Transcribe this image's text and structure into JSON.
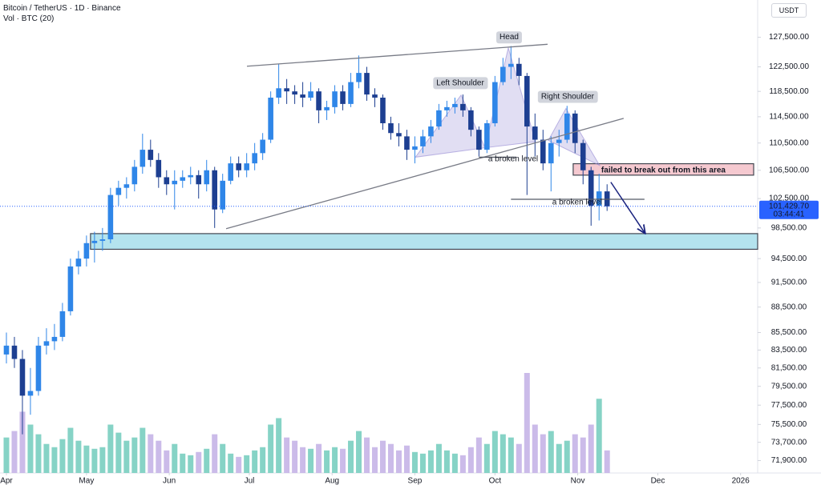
{
  "header": {
    "title": "Bitcoin / TetherUS · 1D · Binance",
    "indicator": "Vol · BTC (20)",
    "currency": "USDT"
  },
  "chart_data": {
    "type": "candlestick",
    "log_scale": true,
    "grid": false,
    "xlim": [
      -2.4,
      281.4
    ],
    "ylim": [
      70700,
      134100
    ],
    "xticks": [
      {
        "value": 0,
        "label": "Apr"
      },
      {
        "value": 30,
        "label": "May"
      },
      {
        "value": 61,
        "label": "Jun"
      },
      {
        "value": 91,
        "label": "Jul"
      },
      {
        "value": 122,
        "label": "Aug"
      },
      {
        "value": 153,
        "label": "Sep"
      },
      {
        "value": 183,
        "label": "Oct"
      },
      {
        "value": 214,
        "label": "Nov"
      },
      {
        "value": 244,
        "label": "Dec"
      },
      {
        "value": 275,
        "label": "2026"
      }
    ],
    "yticks": [
      {
        "value": 127500,
        "label": "127,500.00"
      },
      {
        "value": 122500,
        "label": "122,500.00"
      },
      {
        "value": 118500,
        "label": "118,500.00"
      },
      {
        "value": 114500,
        "label": "114,500.00"
      },
      {
        "value": 110500,
        "label": "110,500.00"
      },
      {
        "value": 106500,
        "label": "106,500.00"
      },
      {
        "value": 102500,
        "label": "102,500.00"
      },
      {
        "value": 98500,
        "label": "98,500.00"
      },
      {
        "value": 94500,
        "label": "94,500.00"
      },
      {
        "value": 91500,
        "label": "91,500.00"
      },
      {
        "value": 88500,
        "label": "88,500.00"
      },
      {
        "value": 85500,
        "label": "85,500.00"
      },
      {
        "value": 83500,
        "label": "83,500.00"
      },
      {
        "value": 81500,
        "label": "81,500.00"
      },
      {
        "value": 79500,
        "label": "79,500.00"
      },
      {
        "value": 77500,
        "label": "77,500.00"
      },
      {
        "value": 75500,
        "label": "75,500.00"
      },
      {
        "value": 73700,
        "label": "73,700.00"
      },
      {
        "value": 71900,
        "label": "71,900.00"
      }
    ],
    "x": [
      0,
      3,
      6,
      9,
      12,
      15,
      18,
      21,
      24,
      27,
      30,
      33,
      36,
      39,
      42,
      45,
      48,
      51,
      54,
      57,
      60,
      63,
      66,
      69,
      72,
      75,
      78,
      81,
      84,
      87,
      90,
      93,
      96,
      99,
      102,
      105,
      108,
      111,
      114,
      117,
      120,
      123,
      126,
      129,
      132,
      135,
      138,
      141,
      144,
      147,
      150,
      153,
      156,
      159,
      162,
      165,
      168,
      171,
      174,
      177,
      180,
      183,
      186,
      189,
      192,
      195,
      198,
      201,
      204,
      207,
      210,
      213,
      216,
      219,
      222,
      225
    ],
    "open": [
      83000,
      84000,
      82500,
      78500,
      79000,
      84000,
      84500,
      85000,
      88000,
      93500,
      94500,
      96500,
      96800,
      97000,
      103000,
      104000,
      104500,
      107000,
      109500,
      108000,
      105500,
      104500,
      105000,
      105500,
      105800,
      104500,
      106500,
      101000,
      105000,
      107500,
      106500,
      107500,
      109000,
      111000,
      117500,
      119000,
      118500,
      118000,
      117500,
      118500,
      115500,
      116000,
      118500,
      116500,
      120000,
      121500,
      118000,
      117500,
      113500,
      112000,
      111500,
      109500,
      110000,
      111500,
      113000,
      115500,
      116000,
      116500,
      115500,
      112500,
      109500,
      113500,
      120000,
      122500,
      123000,
      121000,
      113000,
      111000,
      107500,
      110500,
      111000,
      115000,
      110500,
      106500,
      101500,
      103500
    ],
    "high": [
      85500,
      85000,
      83500,
      81500,
      85000,
      86000,
      86500,
      89000,
      94500,
      95500,
      97500,
      98000,
      98500,
      104000,
      105000,
      105500,
      108000,
      111900,
      111000,
      109000,
      106500,
      106500,
      106500,
      107000,
      106500,
      108000,
      107000,
      106000,
      108500,
      108500,
      109000,
      110500,
      112000,
      118500,
      123000,
      120500,
      119500,
      120000,
      120000,
      119000,
      117000,
      119500,
      119500,
      121500,
      124400,
      122500,
      119000,
      118000,
      114500,
      113500,
      112500,
      111500,
      112500,
      114000,
      116500,
      117000,
      117500,
      118000,
      116000,
      113000,
      114000,
      121000,
      124000,
      126000,
      124000,
      121500,
      115000,
      112500,
      111500,
      112500,
      116200,
      115500,
      111000,
      107000,
      106000,
      104500
    ],
    "low": [
      82000,
      81500,
      74500,
      76500,
      78500,
      83000,
      83500,
      84500,
      87500,
      92500,
      93500,
      94000,
      95500,
      96500,
      101500,
      102500,
      103500,
      106000,
      107000,
      104000,
      103000,
      101000,
      104000,
      104500,
      102500,
      103500,
      98500,
      100500,
      104500,
      105500,
      105500,
      106500,
      108000,
      110500,
      116500,
      116500,
      116500,
      116000,
      117000,
      113500,
      114000,
      115000,
      115500,
      116000,
      119000,
      117000,
      116000,
      112500,
      111000,
      110000,
      108000,
      107500,
      109000,
      110500,
      112500,
      114500,
      115000,
      114500,
      111500,
      108500,
      109000,
      113000,
      119500,
      120500,
      119500,
      103000,
      108500,
      106500,
      103500,
      108500,
      110500,
      109000,
      104500,
      98800,
      99500,
      100800
    ],
    "close": [
      84000,
      82500,
      78500,
      79000,
      84000,
      84500,
      85000,
      88000,
      93500,
      94500,
      96500,
      96800,
      97000,
      103000,
      104000,
      104500,
      107000,
      109500,
      108000,
      105500,
      104500,
      105000,
      105500,
      105800,
      104500,
      106500,
      101000,
      105000,
      107500,
      106500,
      107500,
      109000,
      111000,
      117500,
      119000,
      118500,
      118000,
      117500,
      118500,
      115500,
      116000,
      118500,
      116500,
      120000,
      121500,
      118000,
      117500,
      113500,
      112000,
      111500,
      109500,
      110000,
      111500,
      113000,
      115500,
      116000,
      116500,
      115500,
      112500,
      109500,
      113500,
      120000,
      122500,
      123000,
      121000,
      113000,
      111000,
      107500,
      110500,
      111000,
      115000,
      110500,
      106500,
      101500,
      103500,
      101430
    ],
    "volume": [
      22000,
      26000,
      38000,
      30000,
      24000,
      18000,
      16000,
      21000,
      28000,
      20000,
      17000,
      15000,
      16000,
      30000,
      25000,
      20000,
      22000,
      28000,
      24000,
      20000,
      14000,
      18000,
      12000,
      11000,
      13000,
      15000,
      24000,
      18000,
      12000,
      10000,
      11000,
      14000,
      16000,
      30000,
      34000,
      22000,
      20000,
      16000,
      15000,
      18000,
      14000,
      16000,
      15000,
      20000,
      26000,
      22000,
      16000,
      20000,
      18000,
      14000,
      17000,
      13000,
      12000,
      14000,
      18000,
      14000,
      12000,
      11000,
      16000,
      22000,
      18000,
      26000,
      24000,
      22000,
      18000,
      62000,
      30000,
      24000,
      26000,
      18000,
      20000,
      24000,
      22000,
      30000,
      46000,
      14000
    ],
    "up_color": "#2f86e8",
    "down_color": "#1d3f91",
    "volume_up_color": "#86d3c6",
    "volume_down_color": "#cbbbe9",
    "last_price": {
      "value": 101429.7,
      "label": "101,429.70"
    },
    "countdown": "03:44:41",
    "patterns": [
      {
        "points": [
          [
            153.2,
            108400
          ],
          [
            170.3,
            117900
          ],
          [
            179.3,
            109800
          ]
        ]
      },
      {
        "points": [
          [
            179.3,
            109800
          ],
          [
            188,
            125700
          ],
          [
            198.2,
            110700
          ]
        ]
      },
      {
        "points": [
          [
            203,
            110900
          ],
          [
            209.6,
            115800
          ],
          [
            222.2,
            107200
          ]
        ]
      }
    ],
    "zones": [
      {
        "xlim": [
          31.5,
          281.4
        ],
        "ylim": [
          95700,
          97750
        ],
        "color": "#b4e3ee"
      },
      {
        "xlim": [
          212.3,
          279.9
        ],
        "ylim": [
          105800,
          107450
        ],
        "color": "#f5c9d0",
        "text": "failed to break out from this area"
      }
    ],
    "trendlines": [
      {
        "points": [
          [
            90.1,
            122600
          ],
          [
            202.7,
            126300
          ]
        ],
        "color": "#787b86"
      },
      {
        "points": [
          [
            82.3,
            98400
          ],
          [
            231.2,
            114250
          ]
        ],
        "color": "#787b86"
      },
      {
        "points": [
          [
            177,
            108400
          ],
          [
            191,
            108400
          ]
        ],
        "color": "#555a66"
      },
      {
        "points": [
          [
            189,
            102400
          ],
          [
            239,
            102400
          ]
        ],
        "color": "#555a66"
      }
    ],
    "arrow": {
      "points": [
        [
          226.4,
          104800
        ],
        [
          239.3,
          97750
        ]
      ],
      "color": "#1a237e"
    },
    "annotations": [
      {
        "text": "Head",
        "x": 188.3,
        "y": 127500,
        "style": "box"
      },
      {
        "text": "Left Shoulder",
        "x": 170,
        "y": 119850,
        "style": "box"
      },
      {
        "text": "Right Shoulder",
        "x": 210.2,
        "y": 117650,
        "style": "box"
      },
      {
        "text": "a broken level",
        "x": 189.8,
        "y": 108100,
        "style": "plain"
      },
      {
        "text": "a broken level",
        "x": 213.8,
        "y": 101950,
        "style": "plain"
      }
    ]
  }
}
